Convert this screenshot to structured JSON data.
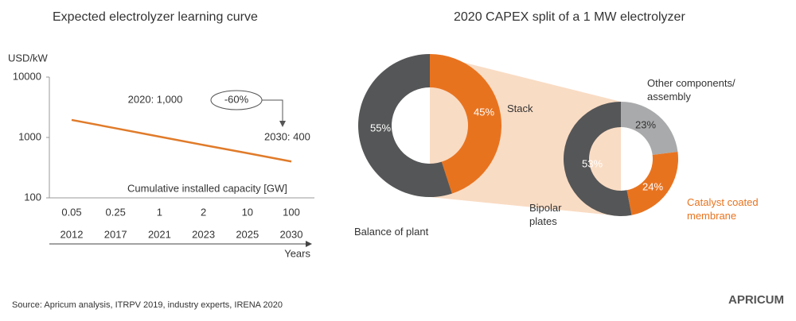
{
  "chart_data": [
    {
      "type": "line",
      "title": "Expected electrolyzer learning curve",
      "y_label": "USD/kW",
      "x_label": "Cumulative installed capacity [GW]",
      "x2_label": "Years",
      "categories": [
        "0.05",
        "0.25",
        "1",
        "2",
        "10",
        "100"
      ],
      "years": [
        "2012",
        "2017",
        "2021",
        "2023",
        "2025",
        "2030"
      ],
      "series": [
        {
          "name": null,
          "color": "#e07b2a",
          "values": [
            1950,
            1420,
            1030,
            750,
            550,
            400
          ]
        }
      ],
      "ylim": [
        100,
        10000
      ],
      "yticks": [
        100,
        1000,
        10000
      ],
      "log_scale": true,
      "annotations": [
        "2020: 1,000",
        "-60%",
        "2030: 400"
      ]
    },
    {
      "type": "donut",
      "title": "2020 CAPEX split of a 1 MW electrolyzer",
      "pies": [
        {
          "categories": [
            "Stack",
            "Balance of plant"
          ],
          "values": [
            45,
            55
          ],
          "value_labels": [
            "45%",
            "55%"
          ],
          "colors": [
            "#e8731f",
            "#555657"
          ]
        },
        {
          "categories": [
            "Other components/ assembly",
            "Catalyst coated membrane",
            "Bipolar plates"
          ],
          "values": [
            23,
            24,
            53
          ],
          "value_labels": [
            "23%",
            "24%",
            "53%"
          ],
          "colors": [
            "#a9aaab",
            "#e8731f",
            "#555657"
          ]
        }
      ]
    }
  ],
  "source": "Source: Apricum analysis, ITRPV 2019, industry experts, IRENA 2020",
  "logo": "APRICUM"
}
